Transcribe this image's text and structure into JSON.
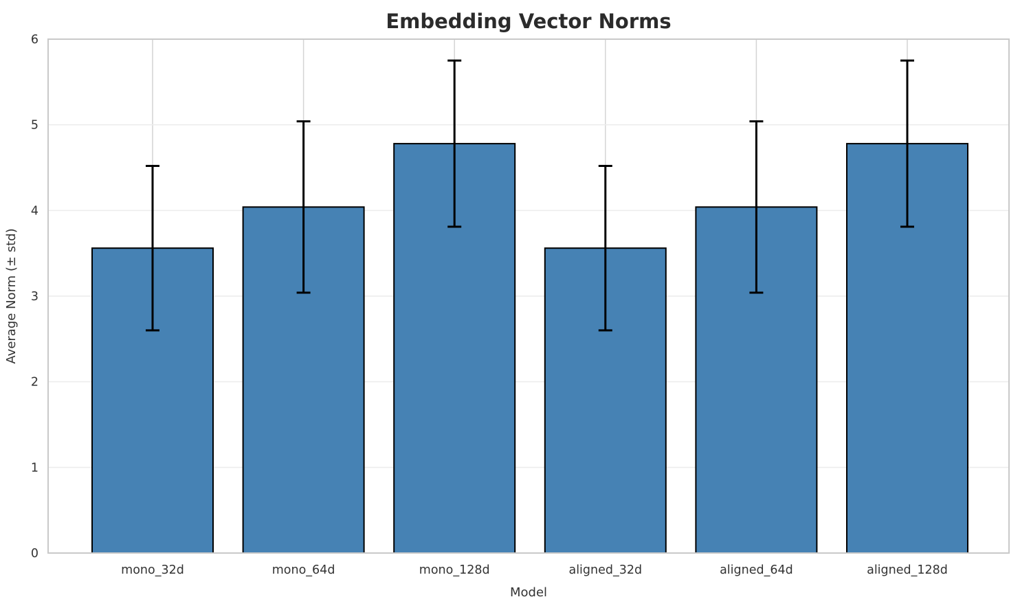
{
  "title": "Embedding Vector Norms",
  "chart_data": {
    "type": "bar",
    "title": "Embedding Vector Norms",
    "xlabel": "Model",
    "ylabel": "Average Norm (± std)",
    "categories": [
      "mono_32d",
      "mono_64d",
      "mono_128d",
      "aligned_32d",
      "aligned_64d",
      "aligned_128d"
    ],
    "values": [
      3.56,
      4.04,
      4.78,
      3.56,
      4.04,
      4.78
    ],
    "errors": [
      0.96,
      1.0,
      0.97,
      0.96,
      1.0,
      0.97
    ],
    "yticks": [
      0,
      1,
      2,
      3,
      4,
      5,
      6
    ],
    "ylim": [
      0,
      6
    ],
    "grid": true,
    "legend_position": "none",
    "colors": {
      "bar_fill": "#4682b4",
      "bar_edge": "#000000",
      "error_bar": "#000000",
      "grid_horizontal": "#ececec",
      "grid_vertical": "#d4d4d4",
      "spine": "#c9c9c9",
      "text": "#333333",
      "title": "#2b2b2b",
      "background": "#ffffff"
    }
  }
}
